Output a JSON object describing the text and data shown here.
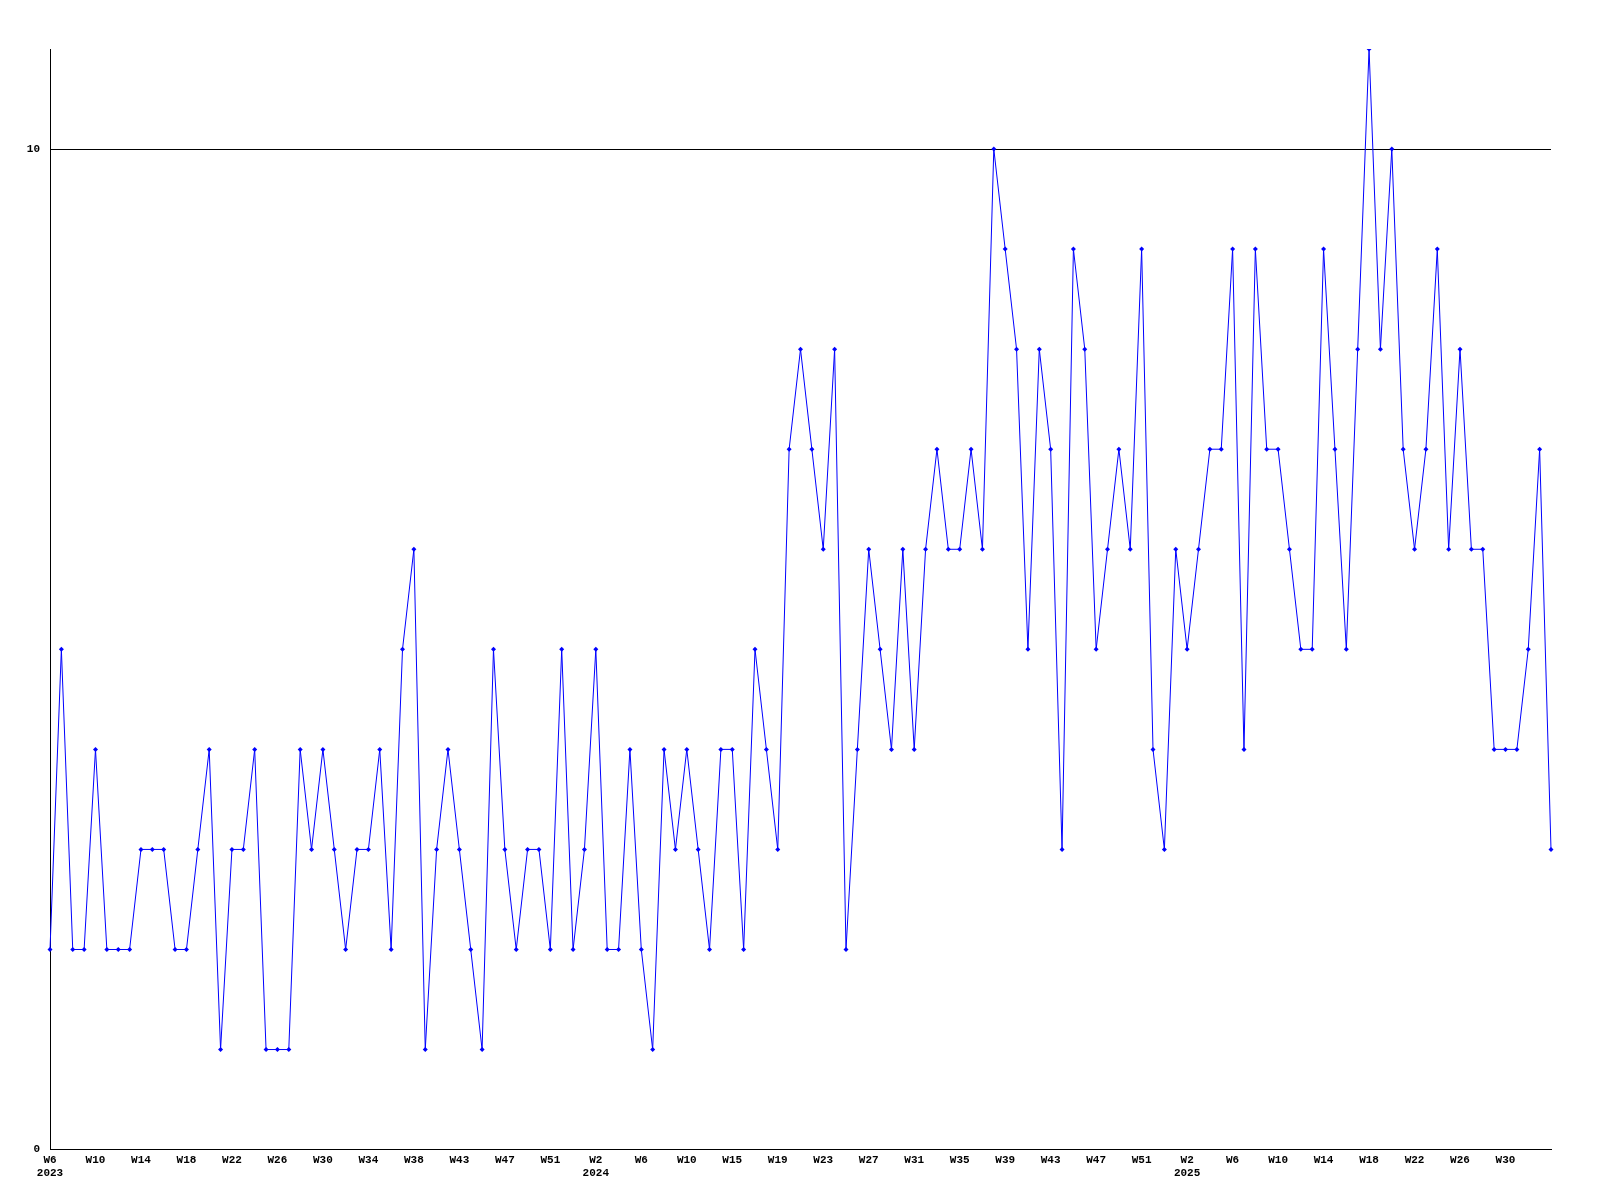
{
  "chart_data": {
    "type": "line",
    "categories": [
      "W6\n2023",
      null,
      null,
      null,
      "W10",
      null,
      null,
      null,
      "W14",
      null,
      null,
      null,
      "W18",
      null,
      null,
      null,
      "W22",
      null,
      null,
      null,
      "W26",
      null,
      null,
      null,
      "W30",
      null,
      null,
      null,
      "W34",
      null,
      null,
      null,
      "W38",
      null,
      null,
      null,
      "W43",
      null,
      null,
      null,
      "W47",
      null,
      null,
      null,
      "W51",
      null,
      null,
      null,
      "W2\n2024",
      null,
      null,
      null,
      "W6",
      null,
      null,
      null,
      "W10",
      null,
      null,
      null,
      "W15",
      null,
      null,
      null,
      "W19",
      null,
      null,
      null,
      "W23",
      null,
      null,
      null,
      "W27",
      null,
      null,
      null,
      "W31",
      null,
      null,
      null,
      "W35",
      null,
      null,
      null,
      "W39",
      null,
      null,
      null,
      "W43",
      null,
      null,
      null,
      "W47",
      null,
      null,
      null,
      "W51",
      null,
      null,
      null,
      "W2\n2025",
      null,
      null,
      null,
      "W6",
      null,
      null,
      null,
      "W10",
      null,
      null,
      null,
      "W14",
      null,
      null,
      null,
      "W18",
      null,
      null,
      null,
      "W22",
      null,
      null,
      null,
      "W26",
      null,
      null,
      null,
      "W30",
      null,
      null,
      null,
      null
    ],
    "series": [
      {
        "color": "#0000ff",
        "values": [
          2,
          5,
          2,
          2,
          4,
          2,
          2,
          2,
          3,
          3,
          3,
          2,
          2,
          3,
          4,
          1,
          3,
          3,
          4,
          1,
          1,
          1,
          4,
          3,
          4,
          3,
          2,
          3,
          3,
          4,
          2,
          5,
          6,
          1,
          3,
          4,
          3,
          2,
          1,
          5,
          3,
          2,
          3,
          3,
          2,
          5,
          2,
          3,
          5,
          2,
          2,
          4,
          2,
          1,
          4,
          3,
          4,
          3,
          2,
          4,
          4,
          2,
          5,
          4,
          3,
          7,
          8,
          7,
          6,
          8,
          2,
          4,
          6,
          5,
          4,
          6,
          4,
          6,
          7,
          6,
          6,
          7,
          6,
          10,
          9,
          8,
          5,
          8,
          7,
          3,
          9,
          8,
          5,
          6,
          7,
          6,
          9,
          4,
          3,
          6,
          5,
          6,
          7,
          7,
          9,
          4,
          9,
          7,
          7,
          6,
          5,
          5,
          9,
          7,
          5,
          8,
          11,
          8,
          10,
          7,
          6,
          7,
          9,
          6,
          8,
          6,
          6,
          4,
          4,
          4,
          5,
          7,
          3
        ]
      }
    ],
    "ylim": [
      0,
      11
    ],
    "yticks": [
      0,
      10
    ],
    "grid": "y",
    "legend": false,
    "marker": "diamond",
    "line_style": "solid"
  }
}
